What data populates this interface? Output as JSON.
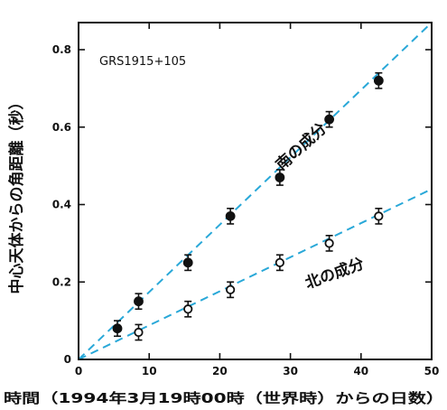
{
  "chart_data": {
    "type": "scatter",
    "annotation": "GRS1915+105",
    "xlabel": "時間（1994年3月19時00時（世界時）からの日数）",
    "ylabel": "中心天体からの角距離（秒）",
    "xlim": [
      0,
      50
    ],
    "ylim": [
      0,
      0.87
    ],
    "xticks": [
      0,
      10,
      20,
      30,
      40,
      50
    ],
    "yticks": [
      0,
      0.2,
      0.4,
      0.6,
      0.8
    ],
    "ytick_labels": [
      "0",
      "0.2",
      "0.4",
      "0.6",
      "0.8"
    ],
    "grid": false,
    "series": [
      {
        "name": "南の成分",
        "marker": "filled-circle",
        "x": [
          5.5,
          8.5,
          15.5,
          21.5,
          28.5,
          35.5,
          42.5
        ],
        "y": [
          0.08,
          0.15,
          0.25,
          0.37,
          0.47,
          0.62,
          0.72
        ],
        "err": [
          0.02,
          0.02,
          0.02,
          0.02,
          0.02,
          0.02,
          0.02
        ],
        "fit_line": {
          "x": [
            0,
            50
          ],
          "y": [
            0,
            0.87
          ]
        }
      },
      {
        "name": "北の成分",
        "marker": "open-circle",
        "x": [
          8.5,
          15.5,
          21.5,
          28.5,
          35.5,
          42.5
        ],
        "y": [
          0.07,
          0.13,
          0.18,
          0.25,
          0.3,
          0.37
        ],
        "err": [
          0.02,
          0.02,
          0.02,
          0.02,
          0.02,
          0.02
        ],
        "fit_line": {
          "x": [
            0,
            50
          ],
          "y": [
            0,
            0.44
          ]
        }
      }
    ],
    "series_labels": [
      {
        "text": "南の成分",
        "x": 32,
        "y": 0.54,
        "angle_deg": -42
      },
      {
        "text": "北の成分",
        "x": 36.5,
        "y": 0.21,
        "angle_deg": -20
      }
    ],
    "colors": {
      "fit_line": "#29a8d8",
      "ink": "#111111"
    }
  }
}
